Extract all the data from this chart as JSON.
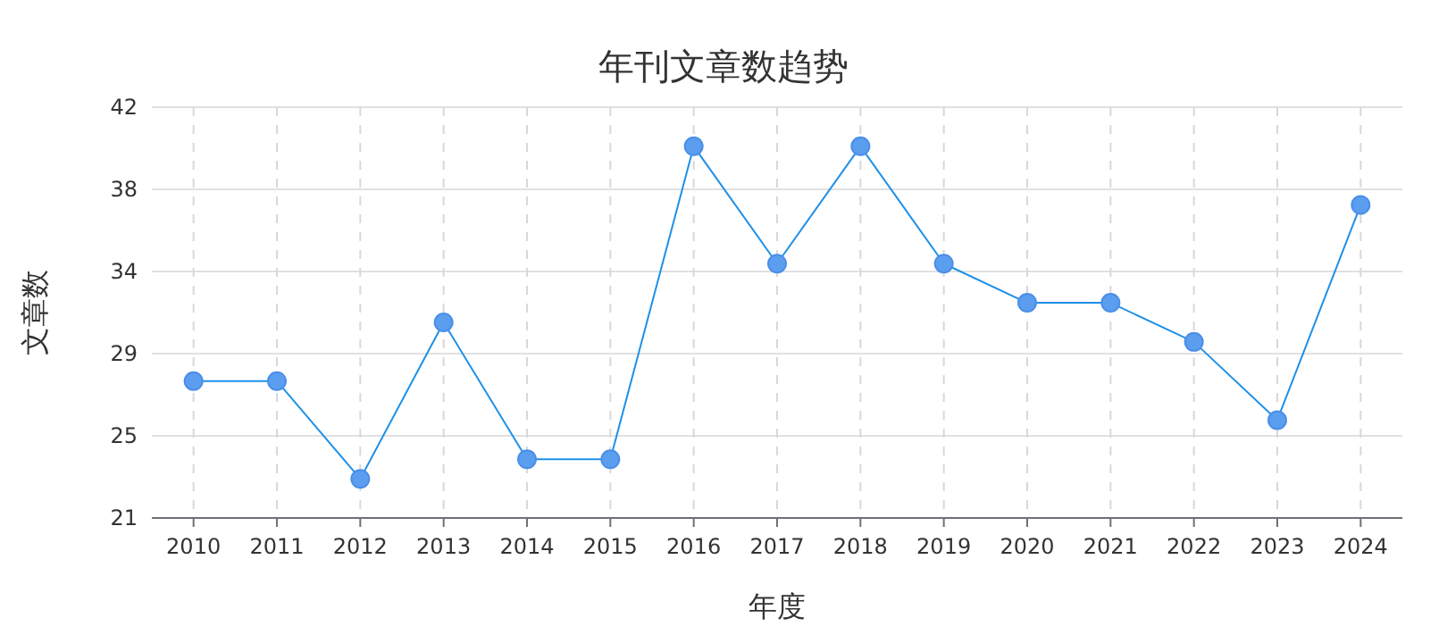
{
  "chart_data": {
    "type": "line",
    "title": "年刊文章数趋势",
    "xlabel": "年度",
    "ylabel": "文章数",
    "categories": [
      "2010",
      "2011",
      "2012",
      "2013",
      "2014",
      "2015",
      "2016",
      "2017",
      "2018",
      "2019",
      "2020",
      "2021",
      "2022",
      "2023",
      "2024"
    ],
    "series": [
      {
        "color": "#1e90e8",
        "values": [
          28,
          28,
          23,
          31,
          24,
          24,
          40,
          34,
          40,
          34,
          32,
          32,
          30,
          26,
          37
        ]
      }
    ],
    "ylim": [
      21,
      42
    ],
    "yticks": [
      21,
      {
        "value": 25.2,
        "label": "25"
      },
      {
        "value": 29.4,
        "label": "29"
      },
      {
        "value": 33.6,
        "label": "34"
      },
      {
        "value": 37.8,
        "label": "38"
      },
      42
    ],
    "grid": true,
    "marker": "circle",
    "line_style": "solid"
  }
}
